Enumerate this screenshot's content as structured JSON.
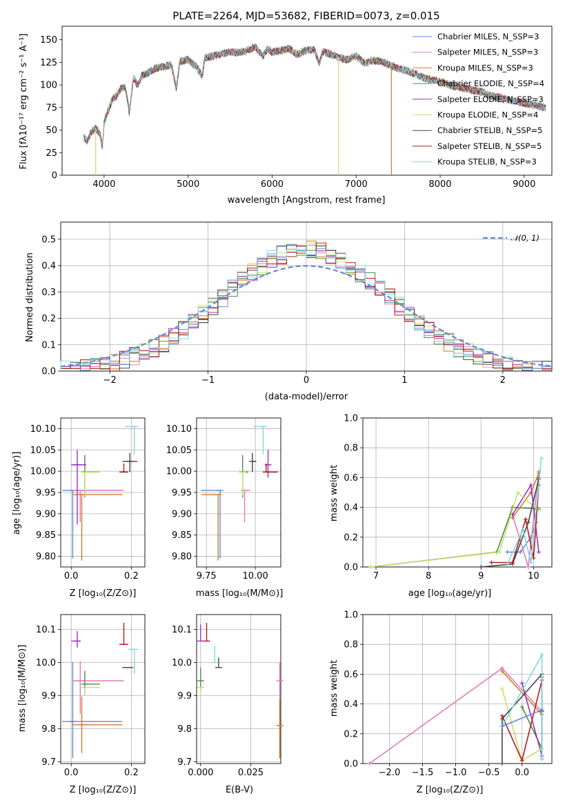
{
  "chart_data": [
    {
      "type": "line",
      "title": "PLATE=2264, MJD=53682, FIBERID=0073, z=0.015",
      "xlabel": "wavelength [Angstrom, rest frame]",
      "ylabel": "Flux [fλ10⁻¹⁷ erg cm⁻² s⁻¹ A⁻¹]",
      "xlim": [
        3500,
        9330
      ],
      "ylim": [
        0,
        165
      ],
      "xticks": [
        "4000",
        "5000",
        "6000",
        "7000",
        "8000",
        "9000"
      ],
      "yticks": [
        "0",
        "25",
        "50",
        "75",
        "100",
        "125",
        "150"
      ],
      "spectrum_x": [
        3760,
        3800,
        3850,
        3900,
        3950,
        3980,
        4000,
        4050,
        4100,
        4150,
        4200,
        4250,
        4300,
        4350,
        4400,
        4450,
        4500,
        4600,
        4700,
        4800,
        4861,
        4900,
        5000,
        5100,
        5170,
        5200,
        5300,
        5400,
        5500,
        5600,
        5700,
        5800,
        5890,
        5950,
        6000,
        6100,
        6200,
        6300,
        6400,
        6500,
        6563,
        6600,
        6700,
        6800,
        6900,
        7000,
        7100,
        7200,
        7300,
        7400,
        7500,
        7600,
        7700,
        7800,
        7900,
        8000,
        8100,
        8200,
        8300,
        8400,
        8500,
        8600,
        8700,
        8800,
        8900,
        9000,
        9100,
        9200,
        9260
      ],
      "spectrum_y": [
        42,
        38,
        48,
        52,
        46,
        30,
        58,
        72,
        84,
        88,
        96,
        98,
        70,
        108,
        100,
        110,
        112,
        118,
        120,
        122,
        96,
        126,
        128,
        120,
        110,
        130,
        132,
        134,
        136,
        136,
        138,
        142,
        132,
        140,
        136,
        138,
        140,
        134,
        138,
        139,
        124,
        137,
        134,
        130,
        128,
        132,
        124,
        127,
        126,
        122,
        118,
        116,
        112,
        108,
        106,
        104,
        100,
        98,
        96,
        94,
        92,
        88,
        86,
        84,
        82,
        80,
        78,
        76,
        74
      ],
      "artifacts": [
        {
          "x": 3900,
          "series": "Kroupa ELODIE"
        },
        {
          "x": 6790,
          "series": "Kroupa ELODIE"
        },
        {
          "x": 7420,
          "series": "Kroupa MILES"
        }
      ],
      "legend_placement": "top-right",
      "series": [
        {
          "name": "Chabrier MILES, N_SSP=3",
          "color": "#5b8bd6"
        },
        {
          "name": "Salpeter MILES, N_SSP=3",
          "color": "#e37bb4"
        },
        {
          "name": "Kroupa MILES, N_SSP=3",
          "color": "#d4782a"
        },
        {
          "name": "Chabrier ELODIE, N_SSP=4",
          "color": "#4a8a4a"
        },
        {
          "name": "Salpeter ELODIE, N_SSP=3",
          "color": "#9b2fbf"
        },
        {
          "name": "Kroupa ELODIE, N_SSP=4",
          "color": "#c6e06a"
        },
        {
          "name": "Chabrier STELIB, N_SSP=5",
          "color": "#444444"
        },
        {
          "name": "Salpeter STELIB, N_SSP=5",
          "color": "#b31b1b"
        },
        {
          "name": "Kroupa STELIB, N_SSP=3",
          "color": "#7fd8e0"
        }
      ]
    },
    {
      "type": "line",
      "xlabel": "(data-model)/error",
      "ylabel": "Normed distribution",
      "xlim": [
        -2.5,
        2.5
      ],
      "ylim": [
        0,
        0.565
      ],
      "xticks": [
        "−2",
        "−1",
        "0",
        "1",
        "2"
      ],
      "yticks": [
        "0.0",
        "0.1",
        "0.2",
        "0.3",
        "0.4",
        "0.5"
      ],
      "grid": true,
      "legend_placement": "top-right",
      "reference_curve": {
        "name": "𝒩(0, 1)",
        "color": "#5b8bd6",
        "mean": 0,
        "sd": 1
      },
      "hist_bins": [
        -2.5,
        -2.4,
        -2.3,
        -2.2,
        -2.1,
        -2.0,
        -1.9,
        -1.8,
        -1.7,
        -1.6,
        -1.5,
        -1.4,
        -1.3,
        -1.2,
        -1.1,
        -1.0,
        -0.9,
        -0.8,
        -0.7,
        -0.6,
        -0.5,
        -0.4,
        -0.3,
        -0.2,
        -0.1,
        0.0,
        0.1,
        0.2,
        0.3,
        0.4,
        0.5,
        0.6,
        0.7,
        0.8,
        0.9,
        1.0,
        1.1,
        1.2,
        1.3,
        1.4,
        1.5,
        1.6,
        1.7,
        1.8,
        1.9,
        2.0,
        2.1,
        2.2,
        2.3,
        2.4,
        2.5
      ],
      "hist_colors": [
        "#5b8bd6",
        "#e37bb4",
        "#d4782a",
        "#4a8a4a",
        "#9b2fbf",
        "#c6e06a",
        "#444444",
        "#b31b1b",
        "#7fd8e0"
      ]
    },
    {
      "type": "scatter",
      "xlabel": "Z [log₁₀(Z/Z⊙)]",
      "ylabel": "age  [log₁₀(age/yr)]",
      "xlim": [
        -0.035,
        0.245
      ],
      "ylim": [
        9.775,
        10.125
      ],
      "xticks": [
        "0.0",
        "0.2"
      ],
      "yticks": [
        "9.80",
        "9.85",
        "9.90",
        "9.95",
        "10.00",
        "10.05",
        "10.10"
      ],
      "points": [
        {
          "x": 0.005,
          "y": 9.955,
          "xerr": [
            0.035,
            0.165
          ],
          "yerr": [
            0.16,
            0.0
          ],
          "color": "#5b8bd6"
        },
        {
          "x": 0.03,
          "y": 9.955,
          "xerr": [
            0.025,
            0.145
          ],
          "yerr": [
            0.075,
            0.0
          ],
          "color": "#e37bb4"
        },
        {
          "x": 0.035,
          "y": 9.945,
          "xerr": [
            0.03,
            0.135
          ],
          "yerr": [
            0.155,
            0.0
          ],
          "color": "#d4782a"
        },
        {
          "x": 0.045,
          "y": 9.998,
          "xerr": [
            0.0,
            0.05
          ],
          "yerr": [
            0.06,
            0.04
          ],
          "color": "#4a8a4a"
        },
        {
          "x": 0.02,
          "y": 10.015,
          "xerr": [
            0.02,
            0.03
          ],
          "yerr": [
            0.14,
            0.035
          ],
          "color": "#9b2fbf"
        },
        {
          "x": 0.045,
          "y": 9.998,
          "xerr": [
            0.0,
            0.05
          ],
          "yerr": [
            0.055,
            0.0
          ],
          "color": "#c6e06a"
        },
        {
          "x": 0.195,
          "y": 10.023,
          "xerr": [
            0.025,
            0.025
          ],
          "yerr": [
            0.025,
            0.02
          ],
          "color": "#444444"
        },
        {
          "x": 0.175,
          "y": 9.998,
          "xerr": [
            0.015,
            0.015
          ],
          "yerr": [
            0.0,
            0.02
          ],
          "color": "#b31b1b"
        },
        {
          "x": 0.21,
          "y": 10.105,
          "xerr": [
            0.03,
            0.01
          ],
          "yerr": [
            0.065,
            0.0
          ],
          "color": "#7fd8e0"
        }
      ]
    },
    {
      "type": "scatter",
      "xlabel": "mass [log₁₀(M/M⊙)]",
      "xlim": [
        9.7,
        10.13
      ],
      "ylim": [
        9.775,
        10.125
      ],
      "xticks": [
        "9.75",
        "10.00"
      ],
      "yticks": [
        "9.80",
        "9.85",
        "9.90",
        "9.95",
        "10.00",
        "10.05",
        "10.10"
      ],
      "points": [
        {
          "x": 9.82,
          "y": 9.955,
          "xerr": [
            0.1,
            0.0
          ],
          "yerr": [
            0.16,
            0.0
          ],
          "color": "#5b8bd6"
        },
        {
          "x": 9.945,
          "y": 9.955,
          "xerr": [
            0.0,
            0.03
          ],
          "yerr": [
            0.075,
            0.0
          ],
          "color": "#e37bb4"
        },
        {
          "x": 9.81,
          "y": 9.945,
          "xerr": [
            0.085,
            0.0
          ],
          "yerr": [
            0.155,
            0.0
          ],
          "color": "#d4782a"
        },
        {
          "x": 9.935,
          "y": 9.998,
          "xerr": [
            0.0,
            0.03
          ],
          "yerr": [
            0.06,
            0.04
          ],
          "color": "#4a8a4a"
        },
        {
          "x": 10.065,
          "y": 10.015,
          "xerr": [
            0.01,
            0.01
          ],
          "yerr": [
            0.03,
            0.035
          ],
          "color": "#9b2fbf"
        },
        {
          "x": 9.935,
          "y": 9.998,
          "xerr": [
            0.0,
            0.01
          ],
          "yerr": [
            0.055,
            0.0
          ],
          "color": "#c6e06a"
        },
        {
          "x": 9.985,
          "y": 10.023,
          "xerr": [
            0.0,
            0.02
          ],
          "yerr": [
            0.025,
            0.02
          ],
          "color": "#444444"
        },
        {
          "x": 10.055,
          "y": 9.998,
          "xerr": [
            0.0,
            0.06
          ],
          "yerr": [
            0.0,
            0.02
          ],
          "color": "#b31b1b"
        },
        {
          "x": 10.04,
          "y": 10.105,
          "xerr": [
            0.05,
            0.0
          ],
          "yerr": [
            0.065,
            0.0
          ],
          "color": "#7fd8e0"
        }
      ]
    },
    {
      "type": "line",
      "xlabel": "age  [log₁₀(age/yr)]",
      "ylabel": "mass weight",
      "xlim": [
        6.75,
        10.35
      ],
      "ylim": [
        0,
        1.0
      ],
      "xticks": [
        "7",
        "8",
        "9",
        "10"
      ],
      "yticks": [
        "0.0",
        "0.2",
        "0.4",
        "0.6",
        "0.8",
        "1.0"
      ],
      "series": [
        {
          "color": "#5b8bd6",
          "x": [
            9.5,
            9.75,
            9.95,
            10.05,
            10.1
          ],
          "y": [
            0.1,
            0.1,
            0.2,
            0.3,
            0.6
          ]
        },
        {
          "color": "#e37bb4",
          "x": [
            9.6,
            9.9,
            10.1
          ],
          "y": [
            0.35,
            0.0,
            0.64
          ]
        },
        {
          "color": "#d4782a",
          "x": [
            9.6,
            9.95,
            10.1
          ],
          "y": [
            0.33,
            0.5,
            0.63
          ]
        },
        {
          "color": "#4a8a4a",
          "x": [
            6.9,
            9.3,
            9.6,
            10.1
          ],
          "y": [
            0.0,
            0.1,
            0.4,
            0.39
          ]
        },
        {
          "color": "#9b2fbf",
          "x": [
            9.6,
            9.95,
            10.1
          ],
          "y": [
            0.35,
            0.55,
            0.1
          ]
        },
        {
          "color": "#c6e06a",
          "x": [
            6.9,
            9.35,
            9.7,
            10.1
          ],
          "y": [
            0.0,
            0.1,
            0.5,
            0.38
          ]
        },
        {
          "color": "#444444",
          "x": [
            9.0,
            9.6,
            9.9,
            10.1
          ],
          "y": [
            0.0,
            0.02,
            0.3,
            0.59
          ]
        },
        {
          "color": "#b31b1b",
          "x": [
            9.2,
            9.6,
            9.85,
            10.0,
            10.1
          ],
          "y": [
            0.03,
            0.03,
            0.32,
            0.06,
            0.55
          ]
        },
        {
          "color": "#7fd8e0",
          "x": [
            9.5,
            9.8,
            9.95,
            10.15
          ],
          "y": [
            0.02,
            0.25,
            0.03,
            0.73
          ]
        }
      ]
    },
    {
      "type": "scatter",
      "xlabel": "Z [log₁₀(Z/Z⊙)]",
      "ylabel": "mass [log₁₀(M/M⊙)]",
      "xlim": [
        -0.035,
        0.245
      ],
      "ylim": [
        9.695,
        10.145
      ],
      "xticks": [
        "0.0",
        "0.2"
      ],
      "yticks": [
        "9.7",
        "9.8",
        "9.9",
        "10.0",
        "10.1"
      ],
      "points": [
        {
          "x": 0.005,
          "y": 9.822,
          "xerr": [
            0.035,
            0.165
          ],
          "yerr": [
            0.11,
            0.18
          ],
          "color": "#5b8bd6"
        },
        {
          "x": 0.03,
          "y": 9.945,
          "xerr": [
            0.025,
            0.145
          ],
          "yerr": [
            0.1,
            0.06
          ],
          "color": "#e37bb4"
        },
        {
          "x": 0.035,
          "y": 9.812,
          "xerr": [
            0.03,
            0.135
          ],
          "yerr": [
            0.085,
            0.085
          ],
          "color": "#d4782a"
        },
        {
          "x": 0.045,
          "y": 9.935,
          "xerr": [
            0.0,
            0.05
          ],
          "yerr": [
            0.03,
            0.04
          ],
          "color": "#4a8a4a"
        },
        {
          "x": 0.02,
          "y": 10.065,
          "xerr": [
            0.02,
            0.01
          ],
          "yerr": [
            0.02,
            0.03
          ],
          "color": "#9b2fbf"
        },
        {
          "x": 0.045,
          "y": 9.925,
          "xerr": [
            0.0,
            0.05
          ],
          "yerr": [
            0.025,
            0.0
          ],
          "color": "#c6e06a"
        },
        {
          "x": 0.195,
          "y": 9.985,
          "xerr": [
            0.025,
            0.0
          ],
          "yerr": [
            0.0,
            0.0
          ],
          "color": "#444444"
        },
        {
          "x": 0.175,
          "y": 10.055,
          "xerr": [
            0.015,
            0.015
          ],
          "yerr": [
            0.0,
            0.065
          ],
          "color": "#b31b1b"
        },
        {
          "x": 0.21,
          "y": 10.04,
          "xerr": [
            0.02,
            0.01
          ],
          "yerr": [
            0.075,
            0.0
          ],
          "color": "#7fd8e0"
        }
      ]
    },
    {
      "type": "scatter",
      "xlabel": "E(B-V)",
      "xlim": [
        -0.002,
        0.04
      ],
      "ylim": [
        9.695,
        10.145
      ],
      "xticks": [
        "0.000",
        "0.025"
      ],
      "yticks": [
        "9.7",
        "9.8",
        "9.9",
        "10.0",
        "10.1"
      ],
      "points": [
        {
          "x": 0.0,
          "y": 9.945,
          "yerr": [
            0.03,
            0.04
          ],
          "color": "#4a8a4a"
        },
        {
          "x": 0.0,
          "y": 10.065,
          "yerr": [
            0.0,
            0.05
          ],
          "color": "#9b2fbf"
        },
        {
          "x": 0.0,
          "y": 9.925,
          "yerr": [
            0.03,
            0.0
          ],
          "color": "#c6e06a"
        },
        {
          "x": 0.003,
          "y": 10.065,
          "yerr": [
            0.0,
            0.055
          ],
          "color": "#b31b1b"
        },
        {
          "x": 0.007,
          "y": 10.0,
          "yerr": [
            0.0,
            0.05
          ],
          "color": "#7fd8e0"
        },
        {
          "x": 0.009,
          "y": 9.985,
          "yerr": [
            0.0,
            0.03
          ],
          "color": "#444444"
        },
        {
          "x": 0.0395,
          "y": 9.945,
          "yerr": [
            0.23,
            0.055
          ],
          "color": "#e37bb4"
        },
        {
          "x": 0.0395,
          "y": 9.81,
          "yerr": [
            0.1,
            0.08
          ],
          "color": "#d4782a"
        }
      ]
    },
    {
      "type": "line",
      "xlabel": "Z [log₁₀(Z/Z⊙)]",
      "ylabel": "mass weight",
      "xlim": [
        -2.4,
        0.45
      ],
      "ylim": [
        0,
        1.0
      ],
      "xticks": [
        "−2.0",
        "−1.5",
        "−1.0",
        "−0.5",
        "0.0"
      ],
      "yticks": [
        "0.0",
        "0.2",
        "0.4",
        "0.6",
        "0.8",
        "1.0"
      ],
      "series": [
        {
          "color": "#e37bb4",
          "x": [
            -2.3,
            -0.3,
            0.3
          ],
          "y": [
            0.0,
            0.64,
            0.35
          ]
        },
        {
          "color": "#d4782a",
          "x": [
            -0.3,
            0.3
          ],
          "y": [
            0.62,
            0.33
          ]
        },
        {
          "color": "#4a8a4a",
          "x": [
            0.0,
            0.3,
            0.3
          ],
          "y": [
            0.38,
            0.1,
            0.58
          ]
        },
        {
          "color": "#9b2fbf",
          "x": [
            0.0,
            0.3,
            0.3
          ],
          "y": [
            0.54,
            0.05,
            0.35
          ]
        },
        {
          "color": "#c6e06a",
          "x": [
            -0.3,
            0.0,
            0.3
          ],
          "y": [
            0.5,
            0.02,
            0.1
          ]
        },
        {
          "color": "#444444",
          "x": [
            -0.3,
            -0.3,
            0.3,
            0.3
          ],
          "y": [
            0.0,
            0.3,
            0.6,
            0.03
          ]
        },
        {
          "color": "#b31b1b",
          "x": [
            -0.3,
            0.0,
            0.3
          ],
          "y": [
            0.32,
            0.02,
            0.56
          ]
        },
        {
          "color": "#7fd8e0",
          "x": [
            -0.3,
            0.3,
            0.3
          ],
          "y": [
            0.25,
            0.73,
            0.03
          ]
        },
        {
          "color": "#5b8bd6",
          "x": [
            -0.3,
            0.3
          ],
          "y": [
            0.25,
            0.36
          ]
        }
      ]
    }
  ]
}
